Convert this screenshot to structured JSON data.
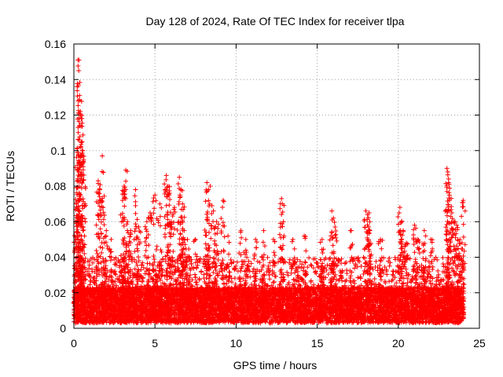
{
  "chart_data": {
    "type": "scatter",
    "title": "Day 128 of 2024, Rate Of TEC Index for receiver tlpa",
    "xlabel": "GPS time / hours",
    "ylabel": "ROTI / TECUs",
    "xlim": [
      0,
      25
    ],
    "ylim": [
      0,
      0.16
    ],
    "xticks": [
      0,
      5,
      10,
      15,
      20,
      25
    ],
    "xtick_labels": [
      "0",
      "5",
      "10",
      "15",
      "20",
      "25"
    ],
    "yticks": [
      0,
      0.02,
      0.04,
      0.06,
      0.08,
      0.1,
      0.12,
      0.14,
      0.16
    ],
    "ytick_labels": [
      "0",
      "0.02",
      "0.04",
      "0.06",
      "0.08",
      "0.1",
      "0.12",
      "0.14",
      "0.16"
    ],
    "grid": true,
    "marker": "plus",
    "marker_color": "#ff0000",
    "series": [
      {
        "name": "ROTI",
        "generator": {
          "x_range": [
            0.0,
            24.05
          ],
          "baseline_min": 0.003,
          "baseline_typical": 0.015,
          "baseline_max": 0.04,
          "n_points": 9000
        },
        "peaks": [
          {
            "x": 0.2,
            "y": 0.099
          },
          {
            "x": 0.25,
            "y": 0.151
          },
          {
            "x": 0.3,
            "y": 0.145
          },
          {
            "x": 0.35,
            "y": 0.131
          },
          {
            "x": 0.4,
            "y": 0.122
          },
          {
            "x": 0.45,
            "y": 0.118
          },
          {
            "x": 0.5,
            "y": 0.105
          },
          {
            "x": 0.55,
            "y": 0.1
          },
          {
            "x": 0.6,
            "y": 0.095
          },
          {
            "x": 0.3,
            "y": 0.088
          },
          {
            "x": 0.15,
            "y": 0.07
          },
          {
            "x": 0.1,
            "y": 0.06
          },
          {
            "x": 1.5,
            "y": 0.083
          },
          {
            "x": 1.6,
            "y": 0.078
          },
          {
            "x": 1.75,
            "y": 0.097
          },
          {
            "x": 1.8,
            "y": 0.068
          },
          {
            "x": 2.0,
            "y": 0.055
          },
          {
            "x": 2.3,
            "y": 0.05
          },
          {
            "x": 3.1,
            "y": 0.08
          },
          {
            "x": 3.2,
            "y": 0.089
          },
          {
            "x": 3.0,
            "y": 0.072
          },
          {
            "x": 3.3,
            "y": 0.06
          },
          {
            "x": 3.5,
            "y": 0.055
          },
          {
            "x": 3.8,
            "y": 0.078
          },
          {
            "x": 4.0,
            "y": 0.057
          },
          {
            "x": 4.5,
            "y": 0.06
          },
          {
            "x": 4.7,
            "y": 0.065
          },
          {
            "x": 5.0,
            "y": 0.075
          },
          {
            "x": 5.3,
            "y": 0.07
          },
          {
            "x": 5.7,
            "y": 0.086
          },
          {
            "x": 5.8,
            "y": 0.08
          },
          {
            "x": 5.9,
            "y": 0.076
          },
          {
            "x": 6.0,
            "y": 0.06
          },
          {
            "x": 6.2,
            "y": 0.068
          },
          {
            "x": 6.5,
            "y": 0.085
          },
          {
            "x": 6.6,
            "y": 0.078
          },
          {
            "x": 6.7,
            "y": 0.07
          },
          {
            "x": 6.8,
            "y": 0.055
          },
          {
            "x": 7.0,
            "y": 0.05
          },
          {
            "x": 7.5,
            "y": 0.05
          },
          {
            "x": 8.2,
            "y": 0.082
          },
          {
            "x": 8.3,
            "y": 0.078
          },
          {
            "x": 8.4,
            "y": 0.08
          },
          {
            "x": 8.6,
            "y": 0.066
          },
          {
            "x": 8.8,
            "y": 0.06
          },
          {
            "x": 9.2,
            "y": 0.072
          },
          {
            "x": 9.5,
            "y": 0.052
          },
          {
            "x": 10.3,
            "y": 0.055
          },
          {
            "x": 10.6,
            "y": 0.05
          },
          {
            "x": 11.2,
            "y": 0.05
          },
          {
            "x": 11.7,
            "y": 0.055
          },
          {
            "x": 12.3,
            "y": 0.05
          },
          {
            "x": 12.8,
            "y": 0.073
          },
          {
            "x": 12.85,
            "y": 0.07
          },
          {
            "x": 13.5,
            "y": 0.05
          },
          {
            "x": 14.2,
            "y": 0.052
          },
          {
            "x": 15.3,
            "y": 0.05
          },
          {
            "x": 15.9,
            "y": 0.066
          },
          {
            "x": 16.0,
            "y": 0.062
          },
          {
            "x": 16.1,
            "y": 0.057
          },
          {
            "x": 17.1,
            "y": 0.055
          },
          {
            "x": 18.0,
            "y": 0.066
          },
          {
            "x": 18.1,
            "y": 0.064
          },
          {
            "x": 18.2,
            "y": 0.065
          },
          {
            "x": 18.25,
            "y": 0.055
          },
          {
            "x": 18.9,
            "y": 0.05
          },
          {
            "x": 20.1,
            "y": 0.068
          },
          {
            "x": 20.2,
            "y": 0.06
          },
          {
            "x": 20.3,
            "y": 0.055
          },
          {
            "x": 20.5,
            "y": 0.048
          },
          {
            "x": 21.0,
            "y": 0.058
          },
          {
            "x": 21.2,
            "y": 0.05
          },
          {
            "x": 21.6,
            "y": 0.055
          },
          {
            "x": 22.0,
            "y": 0.05
          },
          {
            "x": 23.0,
            "y": 0.09
          },
          {
            "x": 23.05,
            "y": 0.088
          },
          {
            "x": 23.1,
            "y": 0.082
          },
          {
            "x": 23.15,
            "y": 0.075
          },
          {
            "x": 23.3,
            "y": 0.065
          },
          {
            "x": 23.5,
            "y": 0.06
          },
          {
            "x": 23.6,
            "y": 0.058
          },
          {
            "x": 24.0,
            "y": 0.072
          },
          {
            "x": 23.8,
            "y": 0.05
          }
        ]
      }
    ]
  }
}
